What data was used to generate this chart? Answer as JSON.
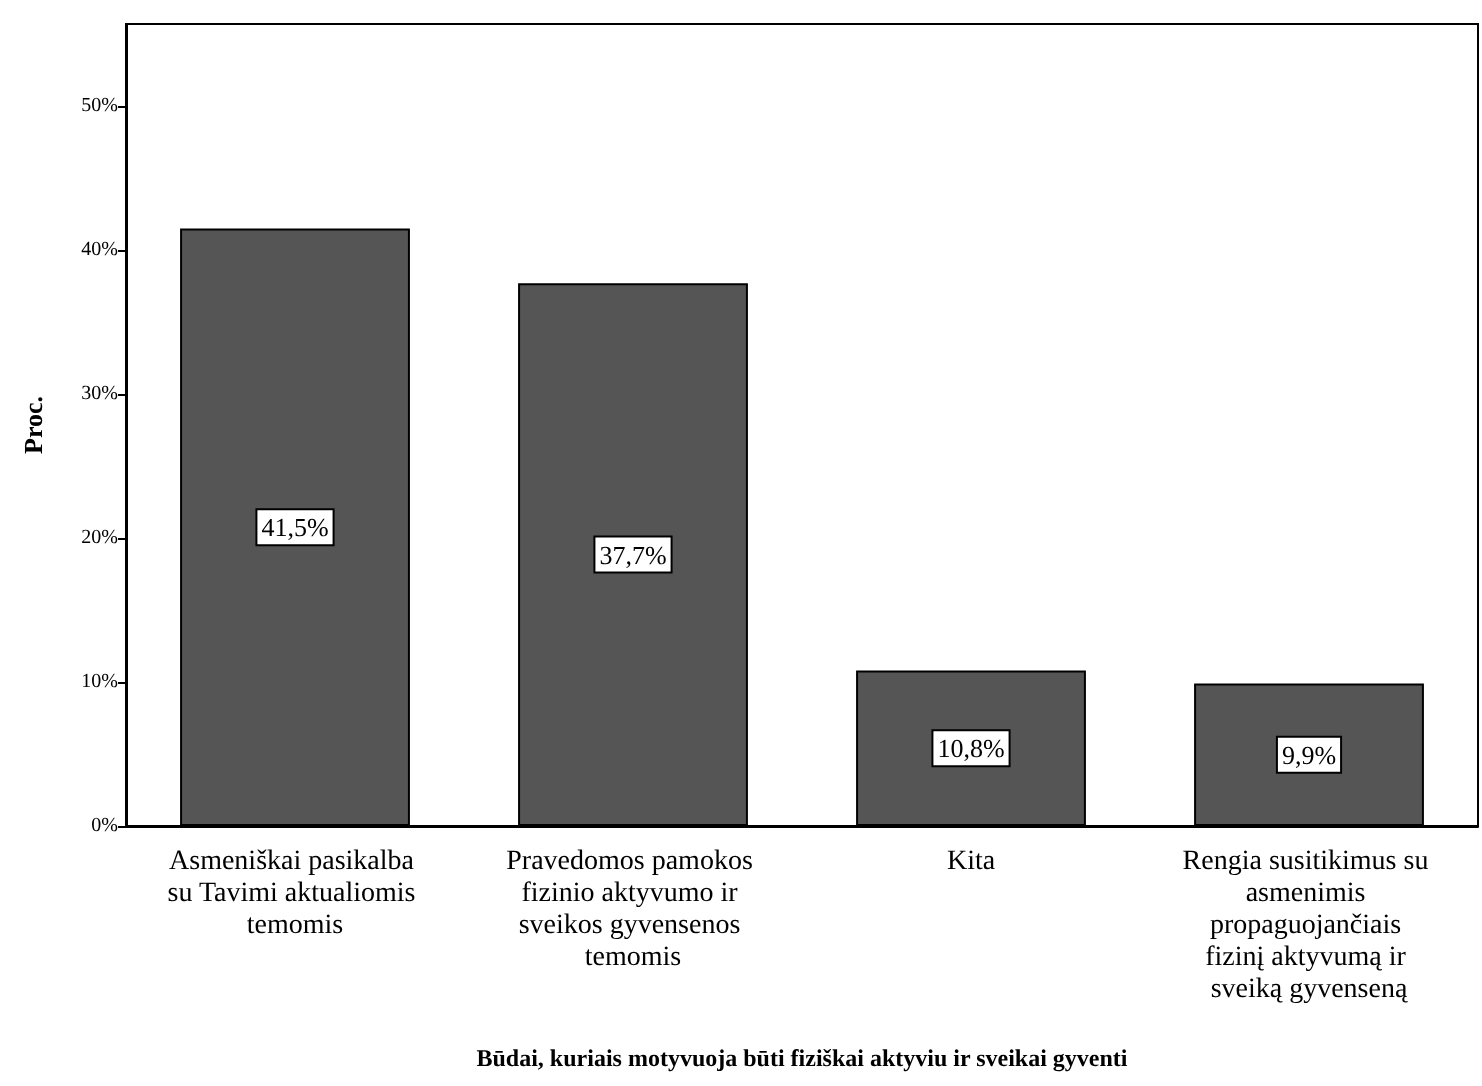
{
  "chart_data": {
    "type": "bar",
    "xlabel": "Būdai, kuriais motyvuoja būti fiziškai aktyviu ir sveikai gyventi",
    "ylabel": "Proc.",
    "categories": [
      "Asmeniškai pasikalba su Tavimi aktualiomis temomis",
      "Pravedomos pamokos fizinio aktyvumo ir sveikos gyvensenos temomis",
      "Kita",
      "Rengia susitikimus su asmenimis propaguojančiais fizinį aktyvumą ir sveiką gyvenseną"
    ],
    "values": [
      41.5,
      37.7,
      10.8,
      9.9
    ],
    "value_labels": [
      "41,5%",
      "37,7%",
      "10,8%",
      "9,9%"
    ],
    "color": "#555555",
    "ylim": [
      0,
      55.7
    ],
    "yticks": [
      {
        "value": 0,
        "label": "0%"
      },
      {
        "value": 10,
        "label": "10%"
      },
      {
        "value": 20,
        "label": "20%"
      },
      {
        "value": 30,
        "label": "30%"
      },
      {
        "value": 40,
        "label": "40%"
      },
      {
        "value": 50,
        "label": "50%"
      }
    ],
    "grid": false
  }
}
